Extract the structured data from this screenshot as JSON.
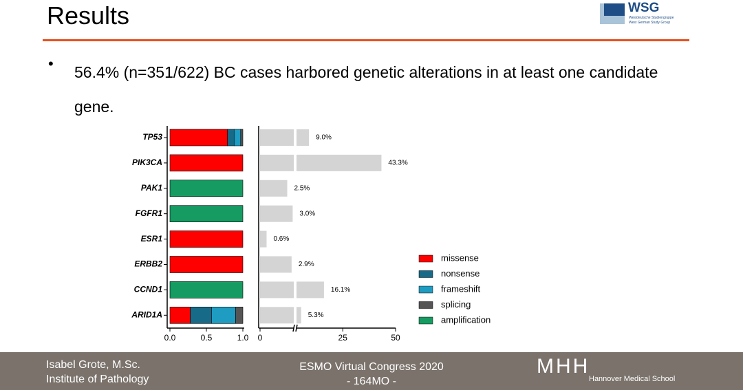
{
  "header": {
    "title": "Results",
    "logo": {
      "name": "WSG",
      "line1": "Westdeutsche Studiengruppe",
      "line2": "West German Study Group"
    }
  },
  "bullet": "56.4% (n=351/622) BC cases harbored genetic alterations in at least one candidate gene.",
  "chart_data": [
    {
      "type": "stacked-barh",
      "categories": [
        "TP53",
        "PIK3CA",
        "PAK1",
        "FGFR1",
        "ESR1",
        "ERBB2",
        "CCND1",
        "ARID1A"
      ],
      "series": [
        {
          "name": "missense",
          "color": "#ff0000",
          "values": [
            0.79,
            1,
            0,
            0,
            1,
            1,
            0,
            0.28
          ]
        },
        {
          "name": "nonsense",
          "color": "#176b88",
          "values": [
            0.09,
            0,
            0,
            0,
            0,
            0,
            0,
            0.29
          ]
        },
        {
          "name": "frameshift",
          "color": "#1e9cc2",
          "values": [
            0.09,
            0,
            0,
            0,
            0,
            0,
            0,
            0.33
          ]
        },
        {
          "name": "splicing",
          "color": "#555555",
          "values": [
            0.03,
            0,
            0,
            0,
            0,
            0,
            0,
            0.1
          ]
        },
        {
          "name": "amplification",
          "color": "#169b62",
          "values": [
            0,
            0,
            1,
            1,
            0,
            0,
            1,
            0
          ]
        }
      ],
      "xlim": [
        0,
        1
      ],
      "xticks": [
        {
          "value": 0,
          "label": "0.0"
        },
        {
          "value": 0.5,
          "label": "0.5"
        },
        {
          "value": 1,
          "label": "1.0"
        }
      ]
    },
    {
      "type": "barh-broken",
      "values": [
        9.0,
        43.3,
        2.5,
        3.0,
        0.6,
        2.9,
        16.1,
        5.3
      ],
      "value_labels": [
        "9.0%",
        "43.3%",
        "2.5%",
        "3.0%",
        "0.6%",
        "2.9%",
        "16.1%",
        "5.3%"
      ],
      "color": "#d4d4d4",
      "xlim": [
        0,
        50
      ],
      "xbreak": 3.1,
      "xticks": [
        0,
        25,
        50
      ]
    }
  ],
  "footer": {
    "author": "Isabel Grote, M.Sc.",
    "institute": "Institute of Pathology",
    "event": "ESMO Virtual Congress 2020",
    "code": "- 164MO -",
    "logo": "MHH",
    "school": "Hannover Medical School"
  }
}
